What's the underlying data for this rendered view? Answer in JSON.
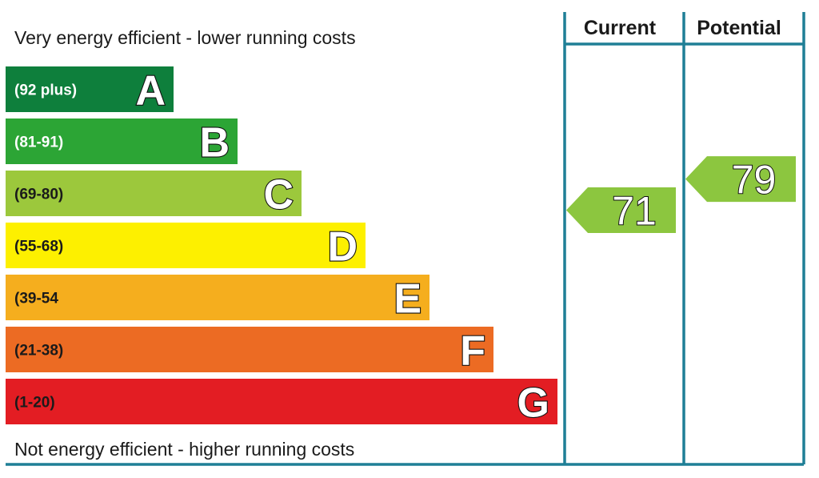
{
  "chart_data": {
    "type": "bar",
    "top_caption": "Very energy efficient - lower running costs",
    "bottom_caption": "Not energy efficient - higher running costs",
    "bands": [
      {
        "letter": "A",
        "range": "(92 plus)",
        "min": 92,
        "max": 100,
        "color": "#0e7f3c",
        "range_text_color": "#ffffff"
      },
      {
        "letter": "B",
        "range": "(81-91)",
        "min": 81,
        "max": 91,
        "color": "#2ca535",
        "range_text_color": "#ffffff"
      },
      {
        "letter": "C",
        "range": "(69-80)",
        "min": 69,
        "max": 80,
        "color": "#9cc83c",
        "range_text_color": "#1a1a1a"
      },
      {
        "letter": "D",
        "range": "(55-68)",
        "min": 55,
        "max": 68,
        "color": "#fdf000",
        "range_text_color": "#1a1a1a"
      },
      {
        "letter": "E",
        "range": "(39-54",
        "min": 39,
        "max": 54,
        "color": "#f5ae1e",
        "range_text_color": "#1a1a1a"
      },
      {
        "letter": "F",
        "range": "(21-38)",
        "min": 21,
        "max": 38,
        "color": "#ec6b23",
        "range_text_color": "#1a1a1a"
      },
      {
        "letter": "G",
        "range": "(1-20)",
        "min": 1,
        "max": 20,
        "color": "#e31d23",
        "range_text_color": "#1a1a1a"
      }
    ],
    "columns": [
      {
        "key": "current",
        "label": "Current",
        "value": 71,
        "display": "71",
        "color": "#8cc63f"
      },
      {
        "key": "potential",
        "label": "Potential",
        "value": 79,
        "display": "79",
        "color": "#8cc63f"
      }
    ]
  }
}
